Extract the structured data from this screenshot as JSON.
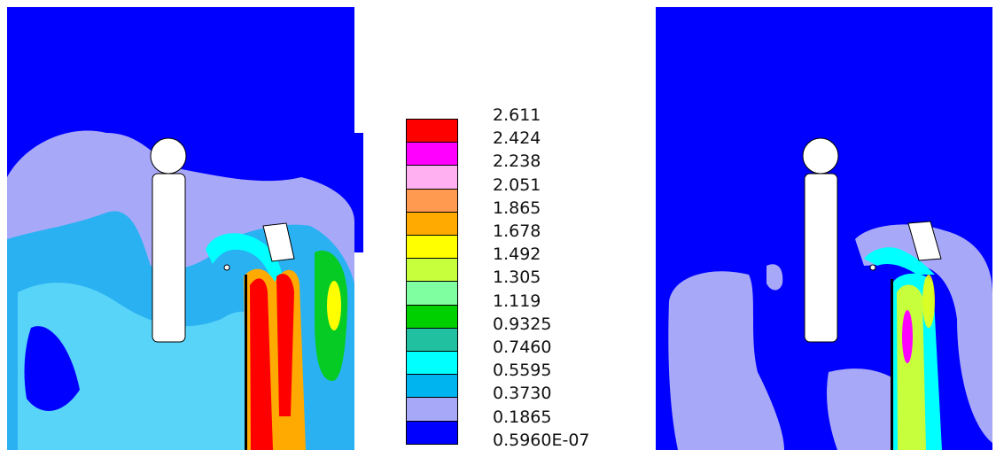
{
  "chart_data": [
    {
      "type": "heatmap",
      "panel": "left",
      "legend": {
        "labels": [
          "2.611",
          "2.424",
          "2.238",
          "2.051",
          "1.865",
          "1.678",
          "1.492",
          "1.305",
          "1.119",
          "0.9325",
          "0.7460",
          "0.5595",
          "0.3730",
          "0.1865",
          "0.5960E-07"
        ],
        "colors": [
          "#ff0000",
          "#ff00ff",
          "#ffb0f0",
          "#ff9a50",
          "#ffaa00",
          "#ffff00",
          "#c8ff3c",
          "#80ffa0",
          "#00d000",
          "#20c0a0",
          "#00ffff",
          "#00b4f0",
          "#a8a8f8",
          "#0000ff"
        ]
      }
    },
    {
      "type": "heatmap",
      "panel": "right"
    }
  ]
}
